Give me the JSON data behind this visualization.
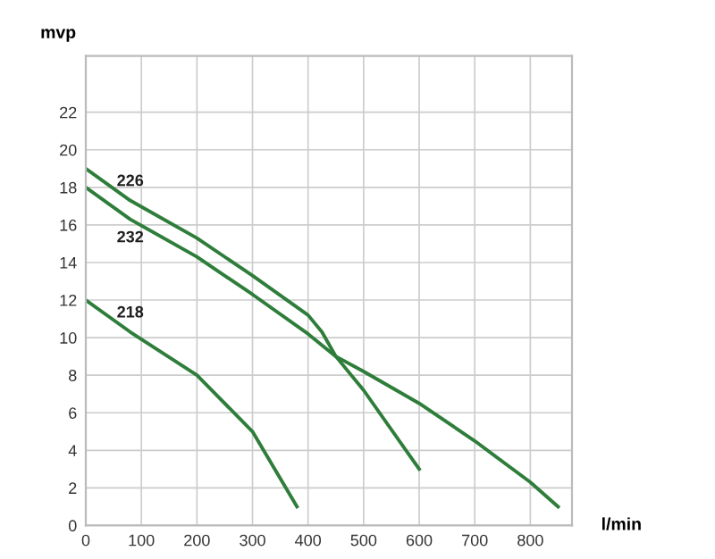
{
  "chart_data": {
    "type": "line",
    "xlabel": "l/min",
    "ylabel": "mvp",
    "xlim": [
      0,
      875
    ],
    "ylim": [
      0,
      25
    ],
    "xticks": [
      0,
      100,
      200,
      300,
      400,
      500,
      600,
      700,
      800
    ],
    "yticks": [
      0,
      2,
      4,
      6,
      8,
      10,
      12,
      14,
      16,
      18,
      20,
      22
    ],
    "grid": true,
    "legend": false,
    "marker": "none",
    "line_style": "solid",
    "series": [
      {
        "name": "226",
        "color": "#2e7d3a",
        "x": [
          0,
          80,
          200,
          300,
          400,
          425,
          450,
          500,
          600
        ],
        "values": [
          19,
          17.3,
          15.3,
          13.3,
          11.2,
          10.3,
          9,
          7.2,
          3
        ]
      },
      {
        "name": "232",
        "color": "#2e7d3a",
        "x": [
          0,
          80,
          200,
          300,
          400,
          450,
          500,
          600,
          700,
          800,
          850
        ],
        "values": [
          18,
          16.3,
          14.3,
          12.3,
          10.2,
          9,
          8.2,
          6.5,
          4.5,
          2.3,
          1
        ]
      },
      {
        "name": "218",
        "color": "#2e7d3a",
        "x": [
          0,
          80,
          200,
          300,
          380
        ],
        "values": [
          12,
          10.3,
          8,
          5,
          1
        ]
      }
    ]
  }
}
